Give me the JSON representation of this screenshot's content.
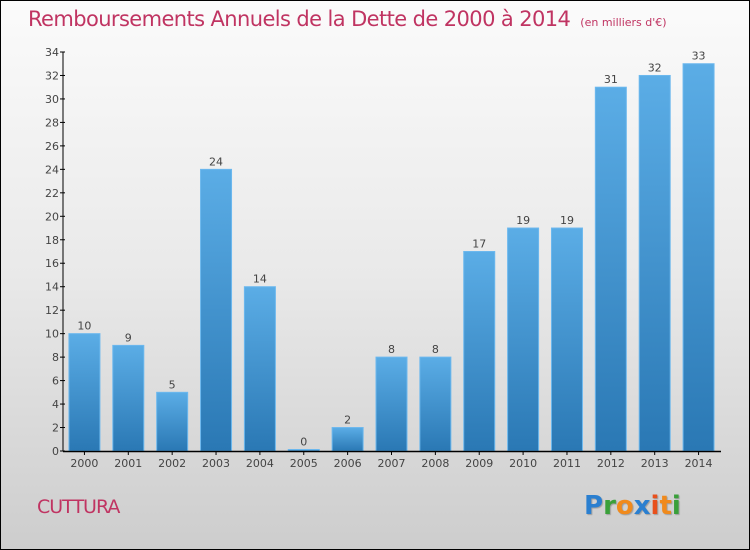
{
  "header": {
    "title": "Remboursements Annuels de la Dette de 2000 à 2014",
    "unit": "(en milliers d'€)"
  },
  "footer": {
    "commune": "CUTTURA",
    "logo": {
      "text": "Proxiti",
      "letters": [
        {
          "ch": "P",
          "color": "#2a7fd0"
        },
        {
          "ch": "r",
          "color": "#3aa03a"
        },
        {
          "ch": "o",
          "color": "#f08a1c"
        },
        {
          "ch": "x",
          "color": "#2a7fd0"
        },
        {
          "ch": "i",
          "color": "#e8501c"
        },
        {
          "ch": "t",
          "color": "#f08a1c"
        },
        {
          "ch": "i",
          "color": "#3aa03a"
        }
      ]
    }
  },
  "colors": {
    "title": "#c03462",
    "bar_top": "#5bade6",
    "bar_bottom": "#2a78b4",
    "bar_border": "#6cb8ee",
    "axis": "#000000"
  },
  "chart_data": {
    "type": "bar",
    "title": "Remboursements Annuels de la Dette de 2000 à 2014",
    "subtitle": "(en milliers d'€)",
    "xlabel": "",
    "ylabel": "",
    "categories": [
      "2000",
      "2001",
      "2002",
      "2003",
      "2004",
      "2005",
      "2006",
      "2007",
      "2008",
      "2009",
      "2010",
      "2011",
      "2012",
      "2013",
      "2014"
    ],
    "values": [
      10,
      9,
      5,
      24,
      14,
      0,
      2,
      8,
      8,
      17,
      19,
      19,
      31,
      32,
      33
    ],
    "ylim": [
      0,
      34
    ],
    "yticks": [
      0,
      2,
      4,
      6,
      8,
      10,
      12,
      14,
      16,
      18,
      20,
      22,
      24,
      26,
      28,
      30,
      32,
      34
    ],
    "grid": false,
    "legend": "none",
    "data_labels": true
  }
}
